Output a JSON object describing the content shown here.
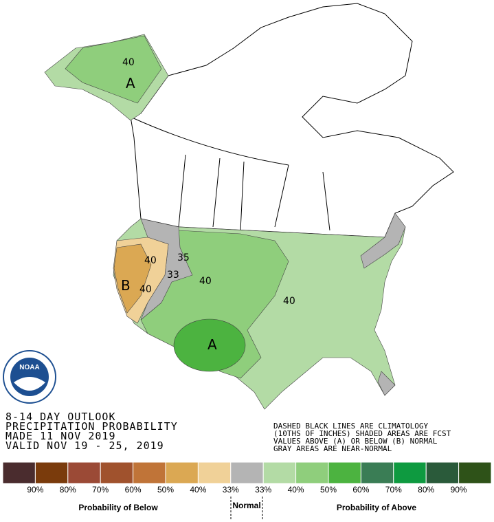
{
  "header": {
    "lines": [
      "8-14 DAY OUTLOOK",
      "PRECIPITATION PROBABILITY",
      "MADE  11 NOV 2019",
      "VALID  NOV 19 - 25, 2019"
    ]
  },
  "note": {
    "lines": [
      "DASHED BLACK LINES ARE CLIMATOLOGY",
      "(10THS OF INCHES) SHADED AREAS ARE FCST",
      "VALUES ABOVE (A) OR BELOW (B) NORMAL",
      "GRAY AREAS ARE NEAR-NORMAL"
    ]
  },
  "logo": {
    "text": "NOAA"
  },
  "map": {
    "labels": [
      "40",
      "A",
      "B",
      "40",
      "40",
      "35",
      "33",
      "40",
      "40",
      "A"
    ]
  },
  "legend": {
    "colors": [
      "#4a2c2e",
      "#7a3b0c",
      "#9b4a36",
      "#a0522d",
      "#c07438",
      "#dba853",
      "#f0d198",
      "#b4b4b4",
      "#b3dba5",
      "#8fce7c",
      "#4cb340",
      "#3a7d55",
      "#0e9a40",
      "#2a5a3a",
      "#2e5218"
    ],
    "ticks": [
      "90%",
      "80%",
      "70%",
      "60%",
      "50%",
      "40%",
      "33%",
      "33%",
      "40%",
      "50%",
      "60%",
      "70%",
      "80%",
      "90%"
    ],
    "below": "Probability of Below",
    "normal": "Normal",
    "above": "Probability of Above"
  }
}
